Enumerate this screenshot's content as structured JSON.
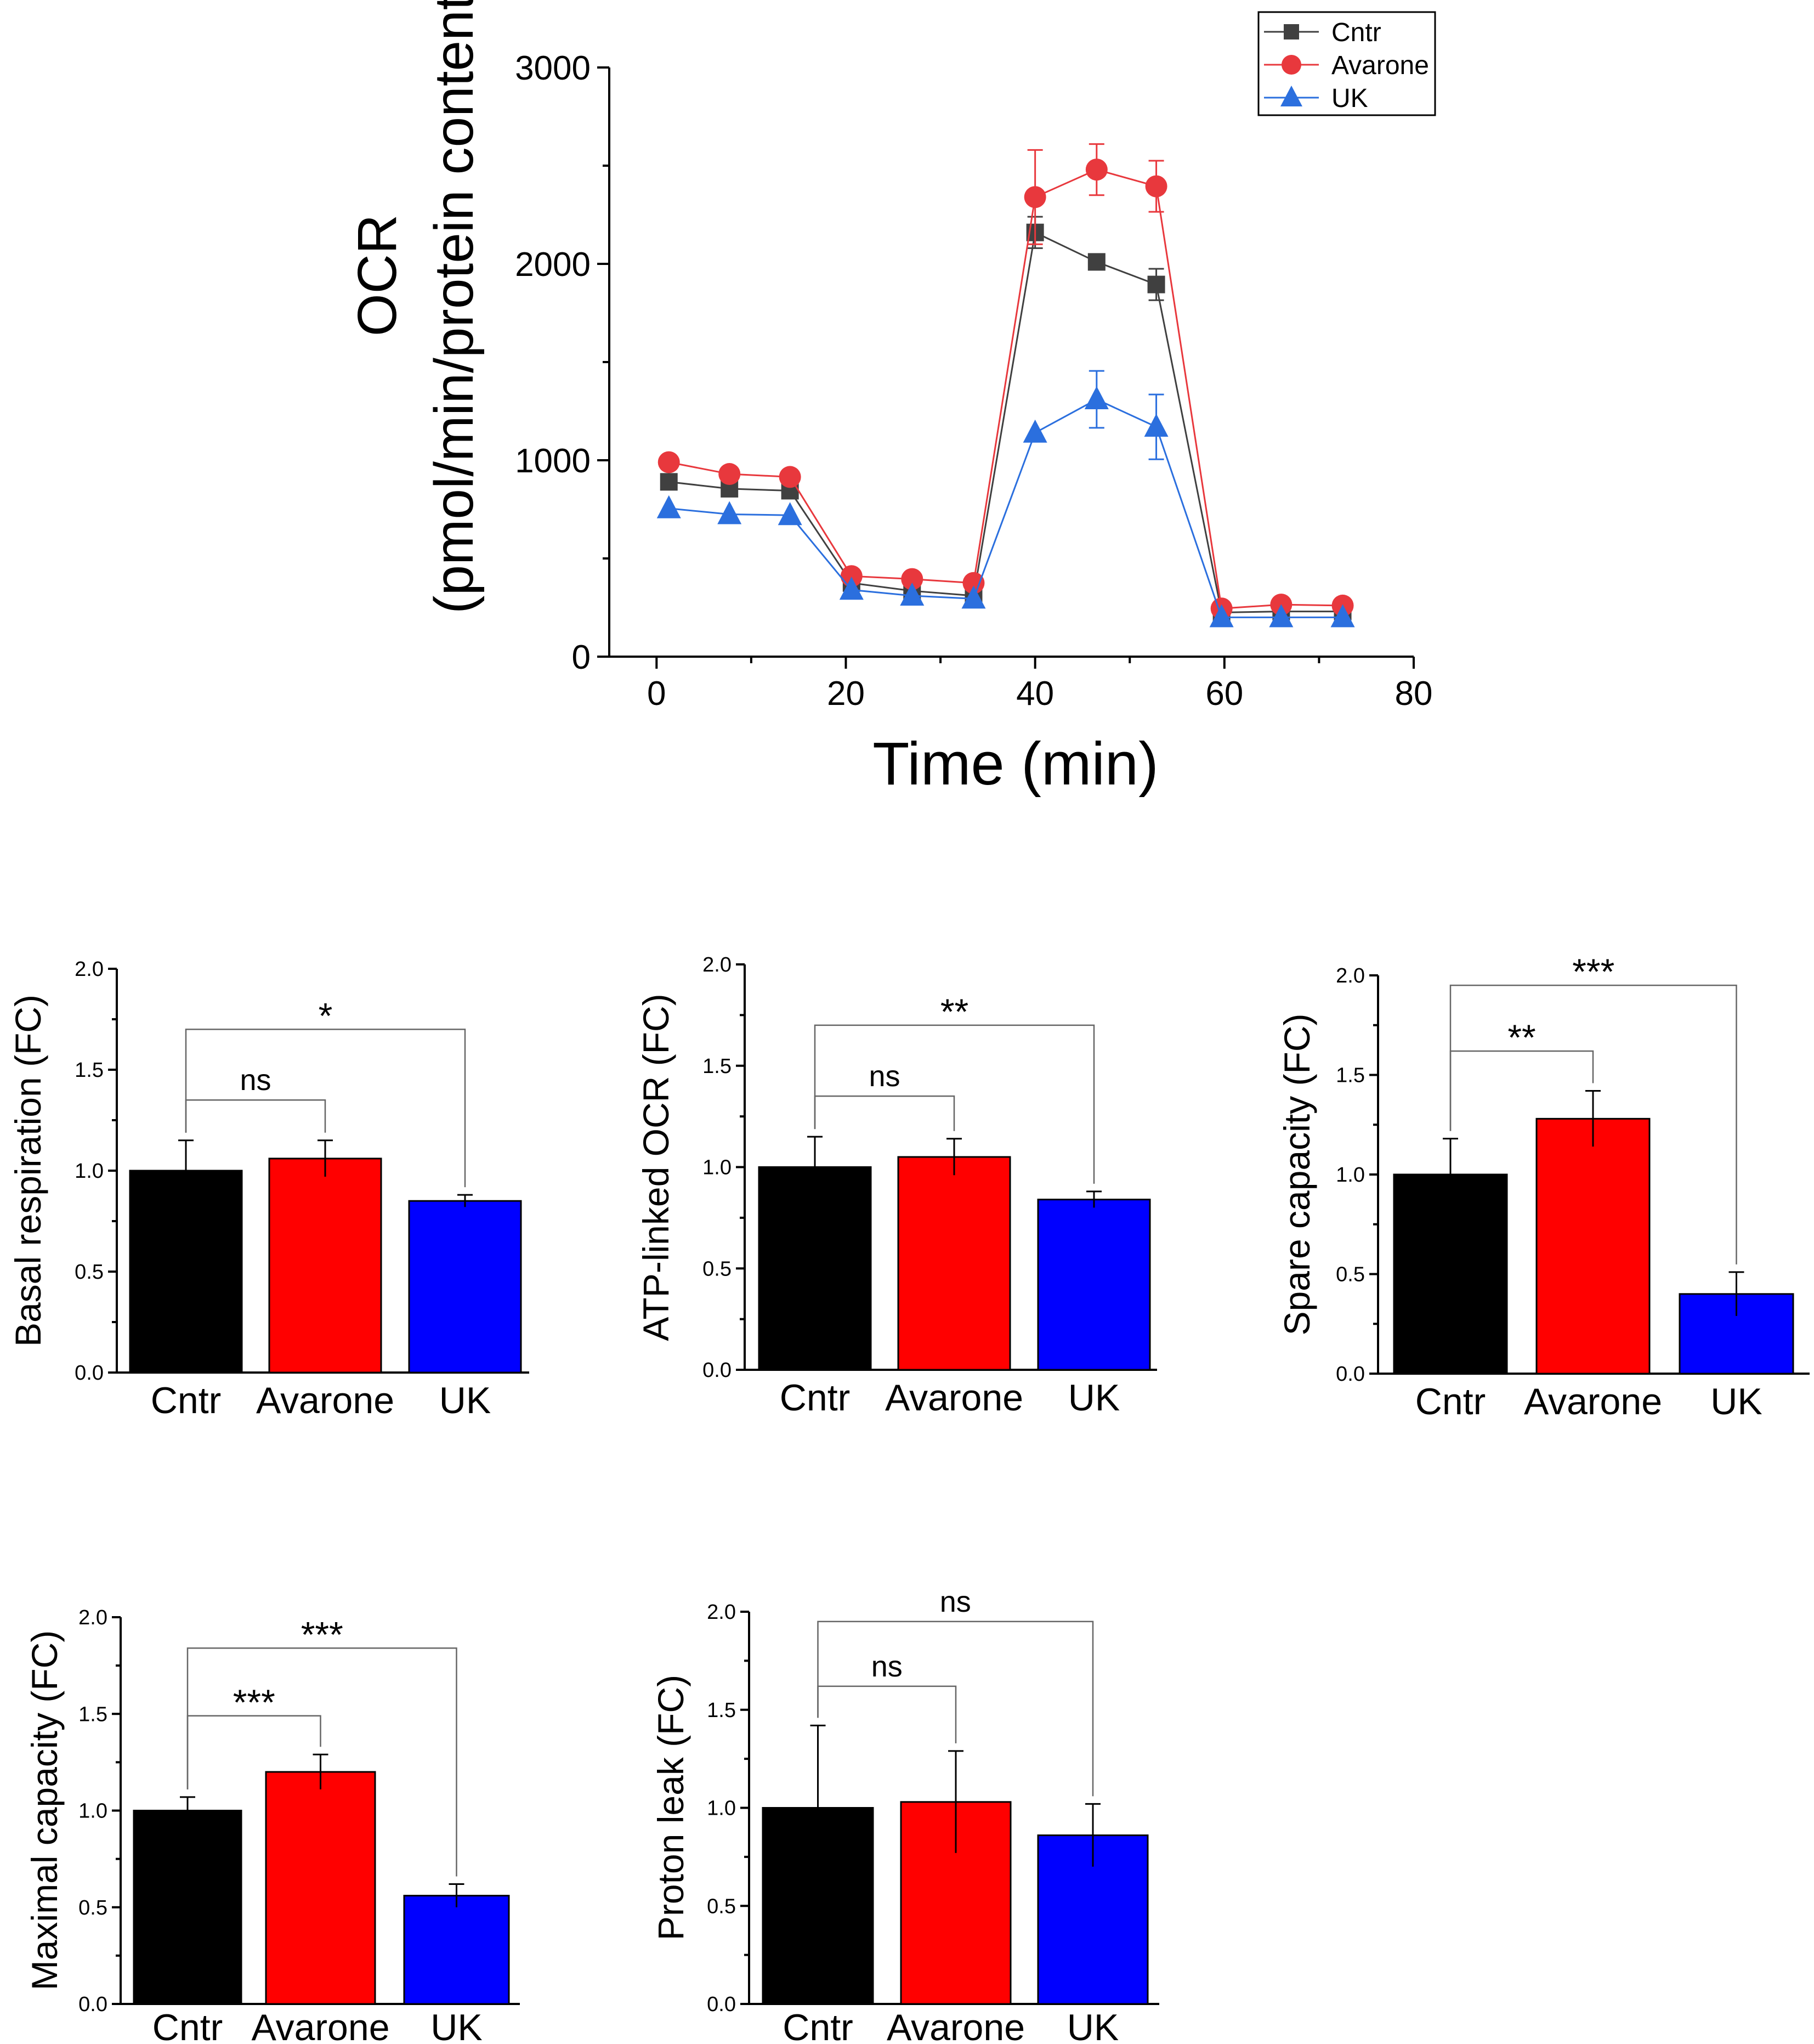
{
  "chart_data": [
    {
      "id": "ocr-line",
      "type": "line",
      "title": "",
      "xlabel": "Time (min)",
      "ylabel": "OCR",
      "ylabel_sub": "(pmol/min/protein content)",
      "xlim": [
        -5,
        80
      ],
      "ylim": [
        0,
        3000
      ],
      "xticks": [
        "0",
        "20",
        "40",
        "60",
        "80"
      ],
      "yticks": [
        "0",
        "1000",
        "2000",
        "3000"
      ],
      "x": [
        1.3,
        7.7,
        14.1,
        20.6,
        27.0,
        33.5,
        40.0,
        46.5,
        52.8,
        59.7,
        66.0,
        72.5
      ],
      "series": [
        {
          "name": "Cntr",
          "color": "#404040",
          "marker": "square",
          "values": [
            890,
            855,
            845,
            375,
            335,
            310,
            2160,
            2010,
            1895,
            225,
            230,
            230
          ],
          "errors": [
            0,
            0,
            0,
            0,
            0,
            0,
            80,
            0,
            80,
            0,
            0,
            0
          ]
        },
        {
          "name": "Avarone",
          "color": "#e8383d",
          "marker": "circle",
          "values": [
            990,
            930,
            915,
            410,
            395,
            375,
            2340,
            2480,
            2395,
            245,
            265,
            260
          ],
          "errors": [
            0,
            0,
            0,
            0,
            0,
            0,
            240,
            130,
            130,
            0,
            0,
            0
          ]
        },
        {
          "name": "UK",
          "color": "#2b6fde",
          "marker": "triangle",
          "values": [
            755,
            725,
            720,
            340,
            310,
            295,
            1140,
            1310,
            1170,
            200,
            200,
            200
          ],
          "errors": [
            0,
            0,
            0,
            0,
            0,
            0,
            0,
            145,
            165,
            0,
            0,
            0
          ]
        }
      ]
    },
    {
      "id": "basal",
      "type": "bar",
      "ylabel": "Basal respiration (FC)",
      "categories": [
        "Cntr",
        "Avarone",
        "UK"
      ],
      "values": [
        1.0,
        1.06,
        0.85
      ],
      "errors": [
        0.15,
        0.09,
        0.03
      ],
      "ylim": [
        0,
        2.0
      ],
      "yticks": [
        "0.0",
        "0.5",
        "1.0",
        "1.5",
        "2.0"
      ],
      "significance": [
        {
          "from": 0,
          "to": 1,
          "label": "ns"
        },
        {
          "from": 0,
          "to": 2,
          "label": "*"
        }
      ]
    },
    {
      "id": "atp",
      "type": "bar",
      "ylabel": "ATP-linked OCR (FC)",
      "categories": [
        "Cntr",
        "Avarone",
        "UK"
      ],
      "values": [
        1.0,
        1.05,
        0.84
      ],
      "errors": [
        0.15,
        0.09,
        0.04
      ],
      "ylim": [
        0,
        2.0
      ],
      "yticks": [
        "0.0",
        "0.5",
        "1.0",
        "1.5",
        "2.0"
      ],
      "significance": [
        {
          "from": 0,
          "to": 1,
          "label": "ns"
        },
        {
          "from": 0,
          "to": 2,
          "label": "**"
        }
      ]
    },
    {
      "id": "spare",
      "type": "bar",
      "ylabel": "Spare capacity (FC)",
      "categories": [
        "Cntr",
        "Avarone",
        "UK"
      ],
      "values": [
        1.0,
        1.28,
        0.4
      ],
      "errors": [
        0.18,
        0.14,
        0.11
      ],
      "ylim": [
        0,
        2.0
      ],
      "yticks": [
        "0.0",
        "0.5",
        "1.0",
        "1.5",
        "2.0"
      ],
      "significance": [
        {
          "from": 0,
          "to": 1,
          "label": "**"
        },
        {
          "from": 0,
          "to": 2,
          "label": "***"
        }
      ]
    },
    {
      "id": "maximal",
      "type": "bar",
      "ylabel": "Maximal capacity (FC)",
      "categories": [
        "Cntr",
        "Avarone",
        "UK"
      ],
      "values": [
        1.0,
        1.2,
        0.56
      ],
      "errors": [
        0.07,
        0.09,
        0.06
      ],
      "ylim": [
        0,
        2.0
      ],
      "yticks": [
        "0.0",
        "0.5",
        "1.0",
        "1.5",
        "2.0"
      ],
      "significance": [
        {
          "from": 0,
          "to": 1,
          "label": "***"
        },
        {
          "from": 0,
          "to": 2,
          "label": "***"
        }
      ]
    },
    {
      "id": "leak",
      "type": "bar",
      "ylabel": "Proton leak (FC)",
      "categories": [
        "Cntr",
        "Avarone",
        "UK"
      ],
      "values": [
        1.0,
        1.03,
        0.86
      ],
      "errors": [
        0.42,
        0.26,
        0.16
      ],
      "ylim": [
        0,
        2.0
      ],
      "yticks": [
        "0.0",
        "0.5",
        "1.0",
        "1.5",
        "2.0"
      ],
      "significance": [
        {
          "from": 0,
          "to": 1,
          "label": "ns"
        },
        {
          "from": 0,
          "to": 2,
          "label": "ns"
        }
      ]
    }
  ],
  "bar_colors": [
    "#000000",
    "#ff0000",
    "#0000ff"
  ]
}
